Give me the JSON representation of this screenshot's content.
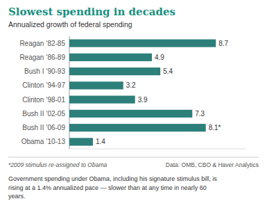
{
  "chart_data": {
    "type": "bar",
    "orientation": "horizontal",
    "title": "Slowest spending in decades",
    "subtitle": "Annualized growth of federal spending",
    "categories": [
      "Reagan ‘82-85",
      "Reagan ‘86-89",
      "Bush I ‘90-93",
      "Clinton ‘94-97",
      "Clinton ‘98-01",
      "Bush II ’02-05",
      "Bush II ’06-09",
      "Obama ’10-13"
    ],
    "values": [
      8.7,
      4.9,
      5.4,
      3.2,
      3.9,
      7.3,
      8.1,
      1.4
    ],
    "value_labels": [
      "8.7",
      "4.9",
      "5.4",
      "3.2",
      "3.9",
      "7.3",
      "8.1*",
      "1.4"
    ],
    "data_labels": true,
    "color": "#2d7f7a",
    "xlim": [
      0,
      10.5
    ],
    "grid": false,
    "tick_labels": "y",
    "annotations": [
      "*2009 stimulus re-assigned to Obama",
      "Data: OMB, CBO & Haver Analytics",
      "Government spending under Obama, including his signature stimulus bill, is\nrising at a 1.4% annualized pace — slower than at any time in nearly 60\nyears."
    ]
  }
}
